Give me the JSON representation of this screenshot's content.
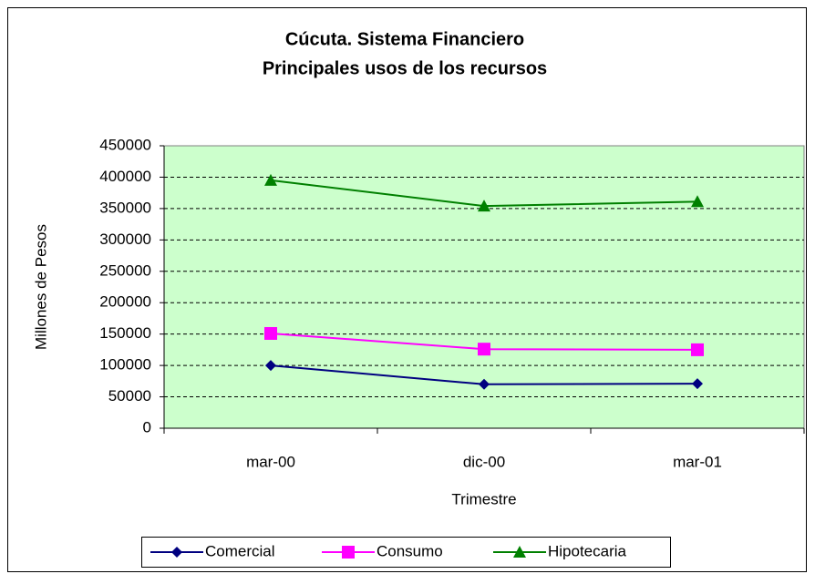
{
  "chart_data": {
    "type": "line",
    "title": "Cúcuta. Sistema Financiero",
    "subtitle": "Principales usos de los recursos",
    "x_label": "Trimestre",
    "y_label": "Millones de Pesos",
    "categories": [
      "mar-00",
      "dic-00",
      "mar-01"
    ],
    "series": [
      {
        "name": "Comercial",
        "color": "#000080",
        "marker": "diamond",
        "values": [
          100000,
          70000,
          71000
        ]
      },
      {
        "name": "Consumo",
        "color": "#ff00ff",
        "marker": "square",
        "values": [
          151000,
          126000,
          125000
        ]
      },
      {
        "name": "Hipotecaria",
        "color": "#008000",
        "marker": "triangle",
        "values": [
          395000,
          354000,
          361000
        ]
      }
    ],
    "ylim": [
      0,
      450000
    ],
    "yticks": [
      0,
      50000,
      100000,
      150000,
      200000,
      250000,
      300000,
      350000,
      400000,
      450000
    ],
    "grid": true,
    "legend": "bottom"
  }
}
